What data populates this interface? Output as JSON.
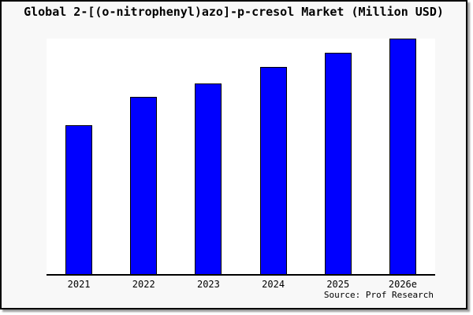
{
  "title": "Global 2-[(o-nitrophenyl)azo]-p-cresol Market (Million USD)",
  "source_caption": "Source: Prof Research",
  "colors": {
    "canvas_background": "#f8f8f8",
    "plot_background": "#ffffff",
    "bar_fill": "#0000ff",
    "bar_border": "#000000",
    "axis": "#000000",
    "frame_border": "#000000",
    "frame_shadow": "#9a9a9a",
    "text": "#000000"
  },
  "chart_data": {
    "type": "bar",
    "title": "Global 2-[(o-nitrophenyl)azo]-p-cresol Market (Million USD)",
    "categories": [
      "2021",
      "2022",
      "2023",
      "2024",
      "2025",
      "2026e"
    ],
    "values": [
      63,
      75,
      81,
      88,
      94,
      100
    ],
    "values_note": "relative estimates; no y-axis tick labels are rendered in the image",
    "xlabel": "",
    "ylabel": "",
    "ylim": [
      0,
      100.3
    ],
    "grid": false,
    "legend": false,
    "y_axis_visible": false,
    "x_axis_visible": true,
    "annotations": [
      "Source: Prof Research"
    ]
  }
}
